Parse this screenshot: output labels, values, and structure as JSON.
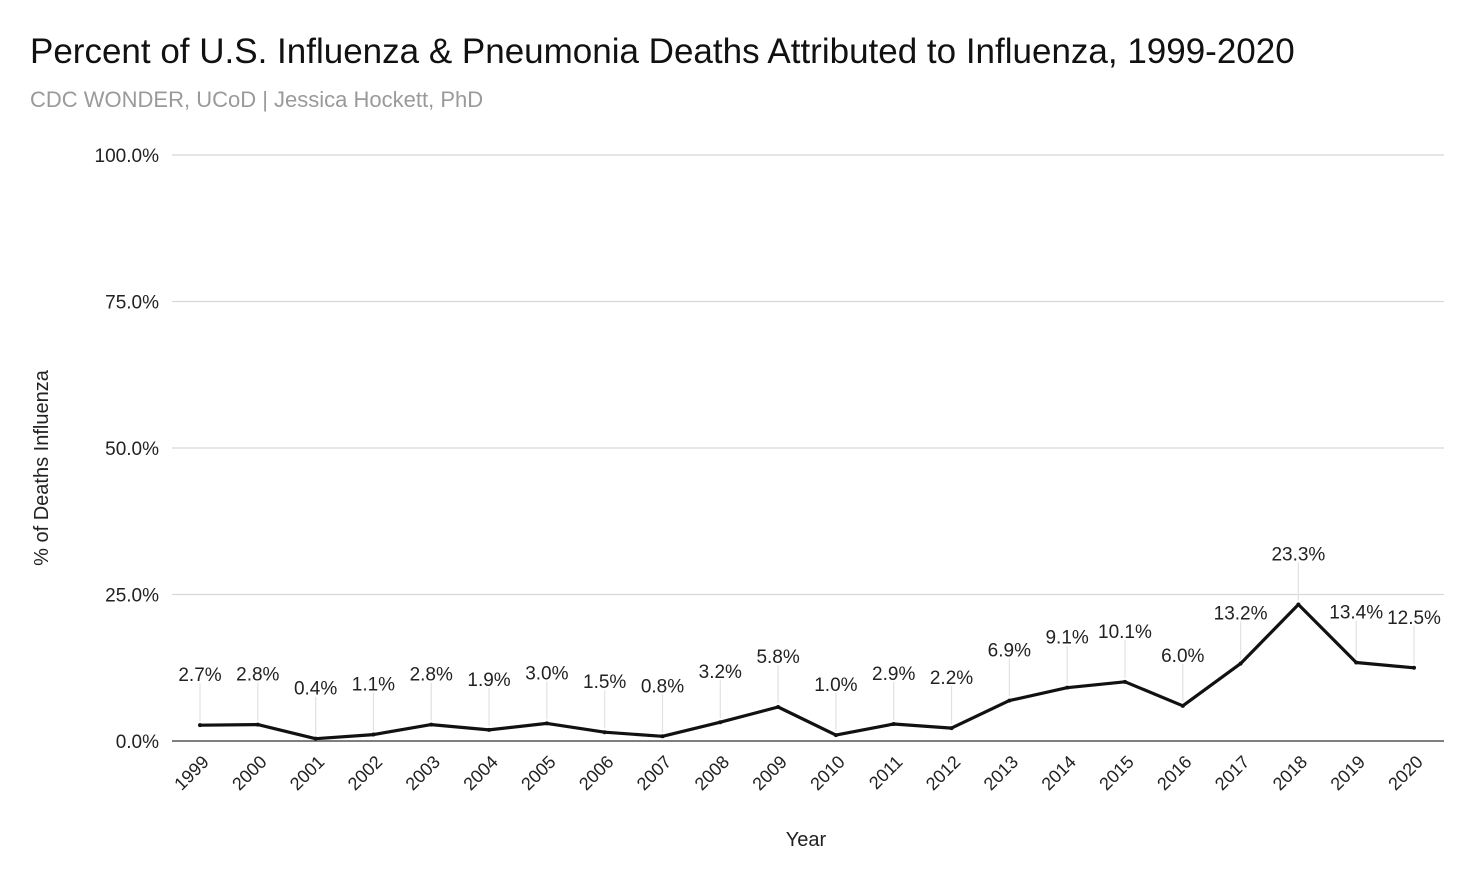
{
  "chart_data": {
    "type": "line",
    "title": "Percent of U.S. Influenza & Pneumonia Deaths Attributed to Influenza, 1999-2020",
    "subtitle": "CDC WONDER, UCoD | Jessica Hockett, PhD",
    "xlabel": "Year",
    "ylabel": "% of Deaths Influenza",
    "ylim": [
      0,
      100
    ],
    "yticks": [
      "0.0%",
      "25.0%",
      "50.0%",
      "75.0%",
      "100.0%"
    ],
    "ytick_values": [
      0,
      25,
      50,
      75,
      100
    ],
    "grid": true,
    "legend": "none",
    "line_color": "#111111",
    "categories": [
      "1999",
      "2000",
      "2001",
      "2002",
      "2003",
      "2004",
      "2005",
      "2006",
      "2007",
      "2008",
      "2009",
      "2010",
      "2011",
      "2012",
      "2013",
      "2014",
      "2015",
      "2016",
      "2017",
      "2018",
      "2019",
      "2020"
    ],
    "series": [
      {
        "values": [
          2.7,
          2.8,
          0.4,
          1.1,
          2.8,
          1.9,
          3.0,
          1.5,
          0.8,
          3.2,
          5.8,
          1.0,
          2.9,
          2.2,
          6.9,
          9.1,
          10.1,
          6.0,
          13.2,
          23.3,
          13.4,
          12.5
        ],
        "labels": [
          "2.7%",
          "2.8%",
          "0.4%",
          "1.1%",
          "2.8%",
          "1.9%",
          "3.0%",
          "1.5%",
          "0.8%",
          "3.2%",
          "5.8%",
          "1.0%",
          "2.9%",
          "2.2%",
          "6.9%",
          "9.1%",
          "10.1%",
          "6.0%",
          "13.2%",
          "23.3%",
          "13.4%",
          "12.5%"
        ]
      }
    ]
  }
}
